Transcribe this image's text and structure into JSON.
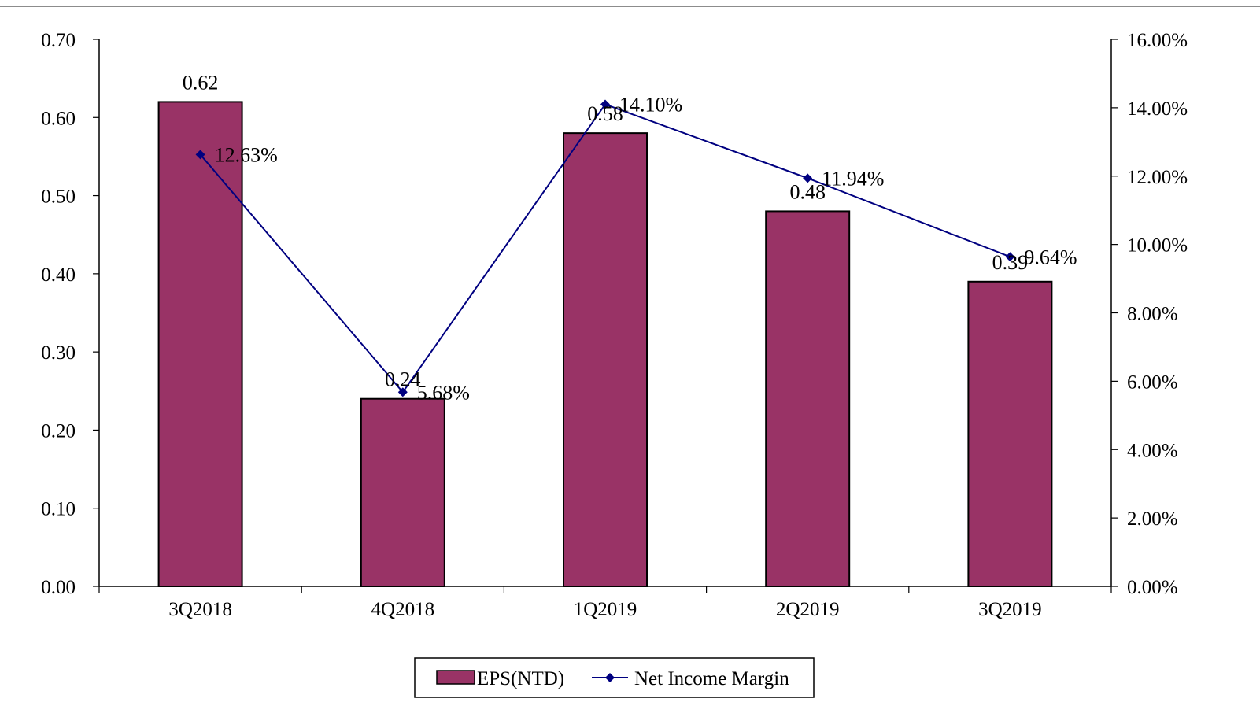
{
  "chart_data": {
    "type": "bar",
    "categories": [
      "3Q2018",
      "4Q2018",
      "1Q2019",
      "2Q2019",
      "3Q2019"
    ],
    "series": [
      {
        "name": "EPS(NTD)",
        "kind": "bar",
        "axis": "left",
        "values": [
          0.62,
          0.24,
          0.58,
          0.48,
          0.39
        ],
        "data_labels": [
          "0.62",
          "0.24",
          "0.58",
          "0.48",
          "0.39"
        ],
        "color": "#993366"
      },
      {
        "name": "Net Income Margin",
        "kind": "line",
        "axis": "right",
        "values": [
          12.63,
          5.68,
          14.1,
          11.94,
          9.64
        ],
        "data_labels": [
          "12.63%",
          "5.68%",
          "14.10%",
          "11.94%",
          "9.64%"
        ],
        "color": "#000080",
        "marker": "diamond"
      }
    ],
    "y_left": {
      "ylim": [
        0,
        0.7
      ],
      "ticks": [
        0,
        0.1,
        0.2,
        0.3,
        0.4,
        0.5,
        0.6,
        0.7
      ],
      "tick_labels": [
        "0.00",
        "0.10",
        "0.20",
        "0.30",
        "0.40",
        "0.50",
        "0.60",
        "0.70"
      ]
    },
    "y_right": {
      "ylim": [
        0,
        16
      ],
      "ticks": [
        0,
        2,
        4,
        6,
        8,
        10,
        12,
        14,
        16
      ],
      "tick_labels": [
        "0.00%",
        "2.00%",
        "4.00%",
        "6.00%",
        "8.00%",
        "10.00%",
        "12.00%",
        "14.00%",
        "16.00%"
      ]
    },
    "grid": false,
    "legend_position": "bottom-center",
    "bar_border_color": "#000000"
  }
}
